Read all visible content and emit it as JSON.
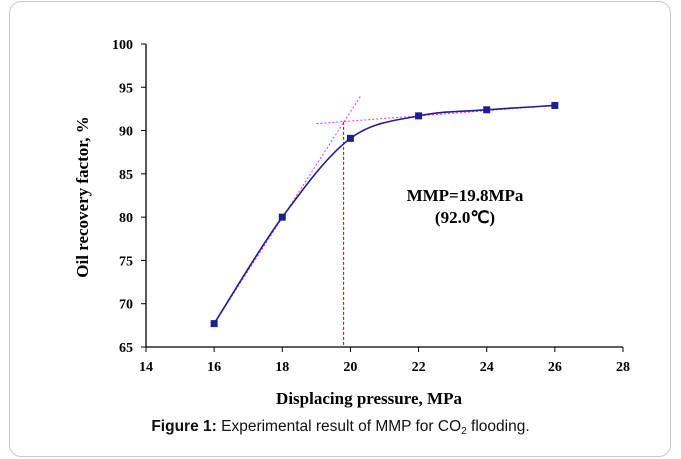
{
  "chart_data": {
    "type": "scatter",
    "xlabel": "Displacing pressure, MPa",
    "ylabel": "Oil recovery factor, %",
    "xlim": [
      14,
      28
    ],
    "ylim": [
      65,
      100
    ],
    "xticks": [
      "14",
      "16",
      "18",
      "20",
      "22",
      "24",
      "26",
      "28"
    ],
    "yticks": [
      "65",
      "70",
      "75",
      "80",
      "85",
      "90",
      "95",
      "100"
    ],
    "grid": false,
    "series": [
      {
        "x": [
          16,
          18,
          20,
          22,
          24,
          26
        ],
        "y": [
          67.7,
          80.0,
          89.1,
          91.7,
          92.4,
          92.9
        ],
        "marker": "square",
        "color": "#1f1f8f",
        "line": "smooth"
      }
    ],
    "guides": {
      "trend_line_1": {
        "x": [
          16,
          20.3
        ],
        "y": [
          67.7,
          94.0
        ]
      },
      "trend_line_2": {
        "x": [
          19.0,
          26
        ],
        "y": [
          90.8,
          92.9
        ]
      },
      "mmp_marker_x": 19.8,
      "mmp_marker_y": 91.0,
      "color": "#ff33cc",
      "marker_line_color": "#cc0000"
    },
    "annotation": {
      "line1": "MMP=19.8MPa",
      "line2": "(92.0℃)"
    }
  },
  "caption": {
    "label": "Figure 1:",
    "text_before": "Experimental result of MMP for CO",
    "subscript": "2",
    "text_after": "flooding."
  }
}
